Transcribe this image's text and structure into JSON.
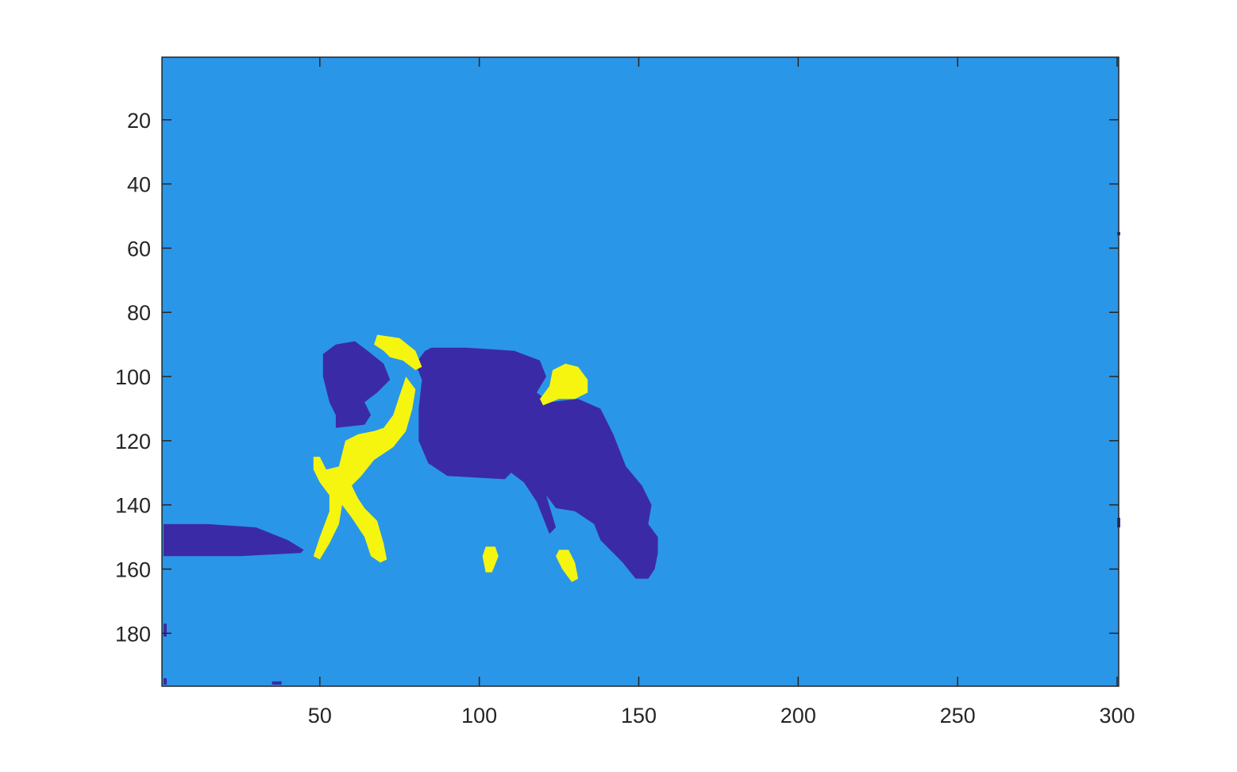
{
  "chart_data": {
    "type": "heatmap",
    "title": "",
    "xlabel": "",
    "ylabel": "",
    "xlim": [
      0.5,
      300.5
    ],
    "ylim": [
      0.5,
      196.5
    ],
    "y_reversed": true,
    "grid": false,
    "colorbar": false,
    "x_ticks": [
      50,
      100,
      150,
      200,
      250,
      300
    ],
    "y_ticks": [
      20,
      40,
      60,
      80,
      100,
      120,
      140,
      160,
      180
    ],
    "classes": [
      {
        "level": 1,
        "color": "#3b2aa6"
      },
      {
        "level": 2,
        "color": "#2a96e8"
      },
      {
        "level": 3,
        "color": "#f5f510"
      }
    ],
    "background_level": 2,
    "regions": [
      {
        "level": 1,
        "polygon": [
          [
            51,
            93
          ],
          [
            55,
            90
          ],
          [
            61,
            89
          ],
          [
            65,
            92
          ],
          [
            70,
            96
          ],
          [
            72,
            101
          ],
          [
            68,
            105
          ],
          [
            64,
            108
          ],
          [
            66,
            112
          ],
          [
            64,
            115
          ],
          [
            55,
            116
          ],
          [
            55,
            112
          ],
          [
            53,
            108
          ],
          [
            52,
            104
          ],
          [
            51,
            100
          ]
        ]
      },
      {
        "level": 1,
        "polygon": [
          [
            85,
            91
          ],
          [
            96,
            91
          ],
          [
            111,
            92
          ],
          [
            119,
            95
          ],
          [
            121,
            100
          ],
          [
            118,
            105
          ],
          [
            122,
            108
          ],
          [
            131,
            107
          ],
          [
            138,
            110
          ],
          [
            142,
            118
          ],
          [
            146,
            128
          ],
          [
            151,
            134
          ],
          [
            154,
            140
          ],
          [
            153,
            146
          ],
          [
            156,
            150
          ],
          [
            156,
            155
          ],
          [
            155,
            160
          ],
          [
            153,
            163
          ],
          [
            149,
            163
          ],
          [
            145,
            158
          ],
          [
            138,
            151
          ],
          [
            136,
            146
          ],
          [
            130,
            142
          ],
          [
            124,
            141
          ],
          [
            121,
            137
          ],
          [
            124,
            147
          ],
          [
            122,
            149
          ],
          [
            118,
            139
          ],
          [
            114,
            133
          ],
          [
            110,
            130
          ],
          [
            108,
            132
          ],
          [
            90,
            131
          ],
          [
            84,
            127
          ],
          [
            81,
            120
          ],
          [
            81,
            110
          ],
          [
            82,
            101
          ],
          [
            80,
            96
          ],
          [
            83,
            92
          ]
        ]
      },
      {
        "level": 1,
        "polygon": [
          [
            1,
            146
          ],
          [
            8,
            146
          ],
          [
            15,
            146
          ],
          [
            30,
            147
          ],
          [
            40,
            151
          ],
          [
            45,
            154
          ],
          [
            44,
            155
          ],
          [
            25,
            156
          ],
          [
            10,
            156
          ],
          [
            1,
            156
          ]
        ]
      },
      {
        "level": 1,
        "polygon": [
          [
            142,
            140
          ],
          [
            146,
            140
          ],
          [
            146,
            143
          ],
          [
            142,
            143
          ]
        ]
      },
      {
        "level": 3,
        "polygon": [
          [
            68,
            87
          ],
          [
            75,
            88
          ],
          [
            80,
            92
          ],
          [
            82,
            97
          ],
          [
            80,
            98
          ],
          [
            76,
            95
          ],
          [
            72,
            94
          ],
          [
            70,
            92
          ],
          [
            67,
            90
          ]
        ]
      },
      {
        "level": 3,
        "polygon": [
          [
            77,
            100
          ],
          [
            80,
            104
          ],
          [
            79,
            110
          ],
          [
            77,
            117
          ],
          [
            73,
            122
          ],
          [
            67,
            126
          ],
          [
            63,
            131
          ],
          [
            60,
            134
          ],
          [
            62,
            138
          ],
          [
            64,
            141
          ],
          [
            68,
            145
          ],
          [
            70,
            152
          ],
          [
            71,
            157
          ],
          [
            69,
            158
          ],
          [
            66,
            156
          ],
          [
            64,
            150
          ],
          [
            60,
            144
          ],
          [
            57,
            140
          ],
          [
            56,
            146
          ],
          [
            53,
            152
          ],
          [
            50,
            157
          ],
          [
            48,
            156
          ],
          [
            50,
            150
          ],
          [
            53,
            142
          ],
          [
            53,
            137
          ],
          [
            50,
            133
          ],
          [
            48,
            129
          ],
          [
            48,
            125
          ],
          [
            50,
            125
          ],
          [
            52,
            129
          ],
          [
            56,
            128
          ],
          [
            57,
            124
          ],
          [
            58,
            120
          ],
          [
            62,
            118
          ],
          [
            67,
            117
          ],
          [
            70,
            116
          ],
          [
            73,
            112
          ],
          [
            75,
            106
          ]
        ]
      },
      {
        "level": 3,
        "polygon": [
          [
            127,
            96
          ],
          [
            131,
            97
          ],
          [
            134,
            101
          ],
          [
            134,
            105
          ],
          [
            130,
            107
          ],
          [
            125,
            107
          ],
          [
            120,
            109
          ],
          [
            119,
            107
          ],
          [
            122,
            103
          ],
          [
            123,
            98
          ]
        ]
      },
      {
        "level": 3,
        "polygon": [
          [
            102,
            153
          ],
          [
            105,
            153
          ],
          [
            106,
            156
          ],
          [
            104,
            161
          ],
          [
            102,
            161
          ],
          [
            101,
            156
          ]
        ]
      },
      {
        "level": 3,
        "polygon": [
          [
            125,
            154
          ],
          [
            128,
            154
          ],
          [
            130,
            158
          ],
          [
            131,
            163
          ],
          [
            129,
            164
          ],
          [
            126,
            160
          ],
          [
            124,
            156
          ]
        ]
      },
      {
        "level": 1,
        "polygon": [
          [
            1,
            177
          ],
          [
            2,
            177
          ],
          [
            2,
            181
          ],
          [
            1,
            181
          ]
        ]
      },
      {
        "level": 1,
        "polygon": [
          [
            1,
            194
          ],
          [
            2,
            194
          ],
          [
            2,
            196
          ],
          [
            1,
            196
          ]
        ]
      },
      {
        "level": 1,
        "polygon": [
          [
            35,
            195
          ],
          [
            38,
            195
          ],
          [
            38,
            196
          ],
          [
            35,
            196
          ]
        ]
      },
      {
        "level": 1,
        "polygon": [
          [
            300,
            144
          ],
          [
            301,
            144
          ],
          [
            301,
            147
          ],
          [
            300,
            147
          ]
        ]
      },
      {
        "level": 1,
        "polygon": [
          [
            300,
            55
          ],
          [
            301,
            55
          ],
          [
            301,
            56
          ],
          [
            300,
            56
          ]
        ]
      }
    ]
  }
}
